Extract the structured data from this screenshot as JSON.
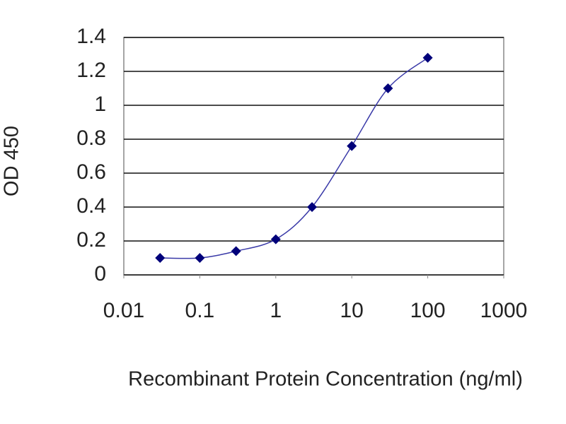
{
  "chart_data": {
    "type": "line",
    "x_label": "Recombinant Protein Concentration (ng/ml)",
    "y_label": "OD 450",
    "x": [
      0.03,
      0.1,
      0.3,
      1,
      3,
      10,
      30,
      100
    ],
    "series": [
      {
        "color": "#00007a",
        "values": [
          0.1,
          0.1,
          0.14,
          0.21,
          0.4,
          0.76,
          1.1,
          1.28
        ]
      }
    ],
    "xscale": "log",
    "xlim": [
      0.01,
      1000
    ],
    "xticks": [
      0.01,
      0.1,
      1,
      10,
      100,
      1000
    ],
    "ylim": [
      0,
      1.4
    ],
    "yticks": [
      0,
      0.2,
      0.4,
      0.6,
      0.8,
      1,
      1.2,
      1.4
    ],
    "grid": true
  }
}
